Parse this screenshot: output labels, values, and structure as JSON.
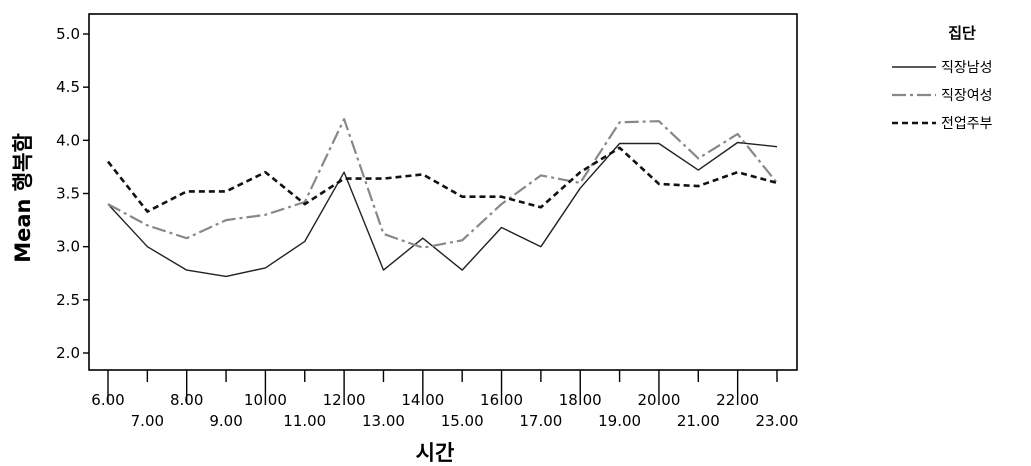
{
  "chart_data": {
    "type": "line",
    "title": "",
    "xlabel": "시간",
    "ylabel": "Mean 행복함",
    "ylim": [
      2.0,
      5.0
    ],
    "yticks": [
      "2.0",
      "2.5",
      "3.0",
      "3.5",
      "4.0",
      "4.5",
      "5.0"
    ],
    "grid": false,
    "legend_position": "right",
    "legend_title": "집단",
    "categories": [
      "6.00",
      "7.00",
      "8.00",
      "9.00",
      "10.00",
      "11.00",
      "12.00",
      "13.00",
      "14.00",
      "15.00",
      "16.00",
      "17.00",
      "18.00",
      "19.00",
      "20.00",
      "21.00",
      "22.00",
      "23.00"
    ],
    "series": [
      {
        "name": "직장남성",
        "style": "solid",
        "color": "#222222",
        "values": [
          3.4,
          3.0,
          2.78,
          2.72,
          2.8,
          3.05,
          3.7,
          2.78,
          3.08,
          2.78,
          3.18,
          3.0,
          3.55,
          3.97,
          3.97,
          3.72,
          3.98,
          3.94
        ]
      },
      {
        "name": "직장여성",
        "style": "dash-dot",
        "color": "#888888",
        "values": [
          3.4,
          3.2,
          3.08,
          3.25,
          3.3,
          3.42,
          4.2,
          3.12,
          2.99,
          3.06,
          3.4,
          3.67,
          3.6,
          4.17,
          4.18,
          3.83,
          4.06,
          3.6
        ]
      },
      {
        "name": "전업주부",
        "style": "dashed",
        "color": "#111111",
        "values": [
          3.8,
          3.33,
          3.52,
          3.52,
          3.7,
          3.4,
          3.64,
          3.64,
          3.68,
          3.47,
          3.47,
          3.37,
          3.7,
          3.93,
          3.59,
          3.57,
          3.7,
          3.6
        ]
      }
    ]
  }
}
